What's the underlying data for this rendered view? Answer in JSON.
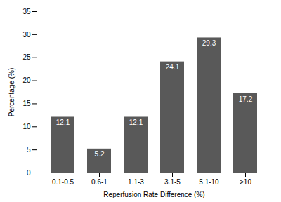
{
  "chart_data": {
    "type": "bar",
    "categories": [
      "0.1-0.5",
      "0.6-1",
      "1.1-3",
      "3.1-5",
      "5.1-10",
      ">10"
    ],
    "values": [
      12.1,
      5.2,
      12.1,
      24.1,
      29.3,
      17.2
    ],
    "color": "#595959",
    "xlabel": "Reperfusion Rate Difference (%)",
    "ylabel": "Percentage (%)",
    "ylim": [
      0,
      35
    ],
    "yticks": [
      0,
      5,
      10,
      15,
      20,
      25,
      30,
      35
    ],
    "grid": false,
    "data_labels": true
  }
}
